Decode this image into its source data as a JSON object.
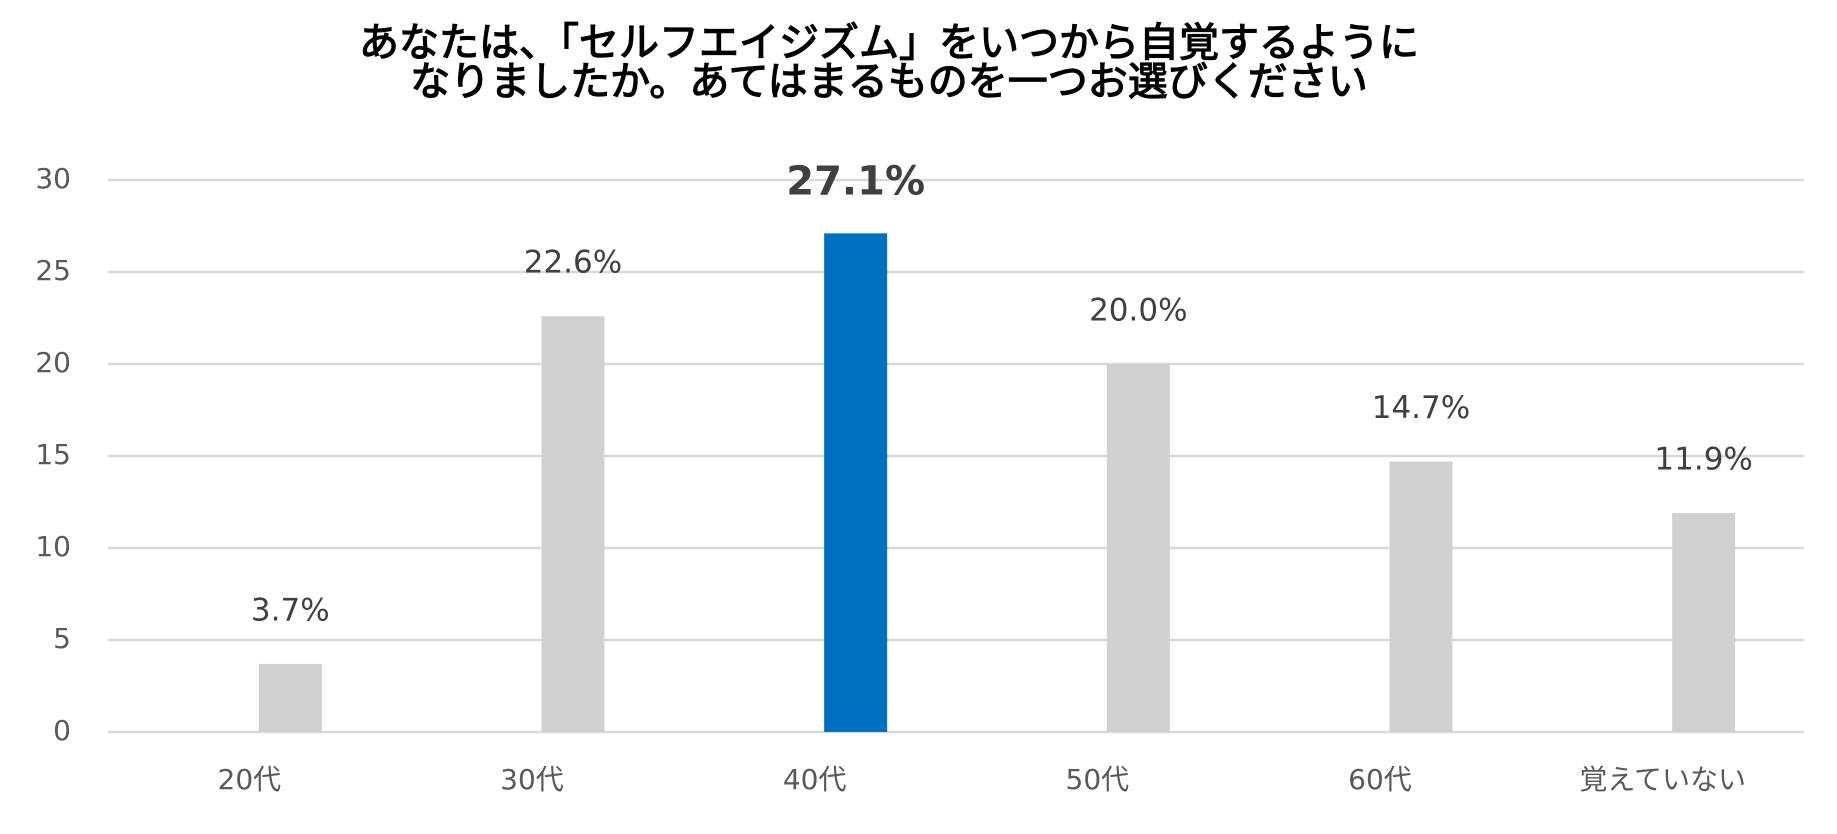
{
  "chart_data": {
    "type": "bar",
    "title": [
      "あなたは、「セルフエイジズム」をいつから自覚するように",
      "なりましたか。あてはまるものを一つお選びください"
    ],
    "categories": [
      "20代",
      "30代",
      "40代",
      "50代",
      "60代",
      "覚えていない"
    ],
    "values": [
      3.7,
      22.6,
      27.1,
      20.0,
      14.7,
      11.9
    ],
    "value_labels": [
      "3.7%",
      "22.6%",
      "27.1%",
      "20.0%",
      "14.7%",
      "11.9%"
    ],
    "colors": [
      "#d0d0d0",
      "#d0d0d0",
      "#0070c0",
      "#d0d0d0",
      "#d0d0d0",
      "#d0d0d0"
    ],
    "ylim": [
      0,
      30
    ],
    "yticks": [
      0,
      5,
      10,
      15,
      20,
      25,
      30
    ],
    "grid": true
  }
}
